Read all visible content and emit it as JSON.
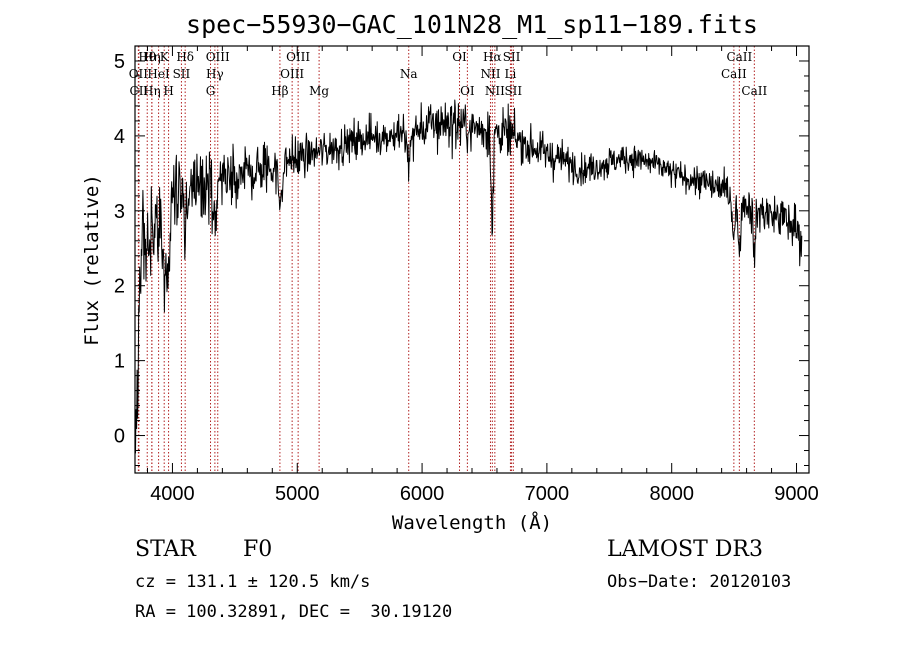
{
  "chart_data": {
    "type": "line",
    "title": "spec−55930−GAC_101N28_M1_sp11−189.fits",
    "xlabel": "Wavelength (Å)",
    "ylabel": "Flux (relative)",
    "xlim": [
      3700,
      9100
    ],
    "ylim": [
      -0.5,
      5.2
    ],
    "xticks": [
      4000,
      5000,
      6000,
      7000,
      8000,
      9000
    ],
    "yticks": [
      0,
      1,
      2,
      3,
      4,
      5
    ],
    "xtick_labels": [
      "4000",
      "5000",
      "6000",
      "7000",
      "8000",
      "9000"
    ],
    "ytick_labels": [
      "0",
      "1",
      "2",
      "3",
      "4",
      "5"
    ],
    "continuum": [
      [
        3700,
        0.0
      ],
      [
        3715,
        0.5
      ],
      [
        3730,
        1.6
      ],
      [
        3760,
        2.7
      ],
      [
        3800,
        2.5
      ],
      [
        3850,
        2.8
      ],
      [
        3900,
        3.0
      ],
      [
        3950,
        3.2
      ],
      [
        4000,
        3.3
      ],
      [
        4100,
        3.3
      ],
      [
        4200,
        3.35
      ],
      [
        4300,
        3.4
      ],
      [
        4400,
        3.45
      ],
      [
        4500,
        3.5
      ],
      [
        4600,
        3.5
      ],
      [
        4700,
        3.55
      ],
      [
        4800,
        3.6
      ],
      [
        4900,
        3.65
      ],
      [
        5000,
        3.7
      ],
      [
        5100,
        3.75
      ],
      [
        5200,
        3.8
      ],
      [
        5300,
        3.85
      ],
      [
        5400,
        3.9
      ],
      [
        5500,
        3.95
      ],
      [
        5600,
        4.0
      ],
      [
        5700,
        4.0
      ],
      [
        5800,
        4.02
      ],
      [
        5900,
        4.0
      ],
      [
        6000,
        4.1
      ],
      [
        6100,
        4.15
      ],
      [
        6200,
        4.2
      ],
      [
        6300,
        4.15
      ],
      [
        6400,
        4.1
      ],
      [
        6500,
        4.1
      ],
      [
        6600,
        4.08
      ],
      [
        6700,
        4.0
      ],
      [
        6800,
        3.9
      ],
      [
        6900,
        3.85
      ],
      [
        7000,
        3.75
      ],
      [
        7100,
        3.7
      ],
      [
        7200,
        3.62
      ],
      [
        7300,
        3.55
      ],
      [
        7400,
        3.6
      ],
      [
        7500,
        3.65
      ],
      [
        7600,
        3.7
      ],
      [
        7700,
        3.7
      ],
      [
        7800,
        3.65
      ],
      [
        7900,
        3.6
      ],
      [
        8000,
        3.5
      ],
      [
        8100,
        3.45
      ],
      [
        8200,
        3.4
      ],
      [
        8300,
        3.35
      ],
      [
        8400,
        3.3
      ],
      [
        8500,
        3.2
      ],
      [
        8600,
        3.1
      ],
      [
        8700,
        3.0
      ],
      [
        8800,
        2.95
      ],
      [
        8900,
        2.9
      ],
      [
        9000,
        2.75
      ],
      [
        9050,
        2.6
      ]
    ],
    "noise": [
      [
        3700,
        0.6
      ],
      [
        4000,
        0.45
      ],
      [
        4400,
        0.35
      ],
      [
        5000,
        0.25
      ],
      [
        5600,
        0.2
      ],
      [
        6000,
        0.28
      ],
      [
        6500,
        0.3
      ],
      [
        7000,
        0.2
      ],
      [
        8000,
        0.15
      ],
      [
        8500,
        0.2
      ],
      [
        9050,
        0.3
      ]
    ],
    "absorption_features": [
      {
        "wavelength": 3934,
        "depth": 1.2,
        "width": 12
      },
      {
        "wavelength": 3969,
        "depth": 1.0,
        "width": 12
      },
      {
        "wavelength": 4102,
        "depth": 0.6,
        "width": 15
      },
      {
        "wavelength": 4340,
        "depth": 0.8,
        "width": 15
      },
      {
        "wavelength": 4861,
        "depth": 0.5,
        "width": 15
      },
      {
        "wavelength": 5890,
        "depth": 0.35,
        "width": 12
      },
      {
        "wavelength": 6563,
        "depth": 1.4,
        "width": 8
      },
      {
        "wavelength": 8498,
        "depth": 0.6,
        "width": 10
      },
      {
        "wavelength": 8542,
        "depth": 0.7,
        "width": 10
      },
      {
        "wavelength": 8662,
        "depth": 0.6,
        "width": 10
      }
    ],
    "spectral_lines": [
      {
        "label": "Hθ",
        "wavelength": 3798,
        "row": 1
      },
      {
        "label": "OII",
        "wavelength": 3727,
        "row": 2
      },
      {
        "label": "CII",
        "wavelength": 3731,
        "row": 3
      },
      {
        "label": "Hη",
        "wavelength": 3835,
        "row": 1
      },
      {
        "label": "HeI",
        "wavelength": 3889,
        "row": 2
      },
      {
        "label": "Hη",
        "wavelength": 3835,
        "row": 3
      },
      {
        "label": "K",
        "wavelength": 3934,
        "row": 1
      },
      {
        "label": "H",
        "wavelength": 3969,
        "row": 3
      },
      {
        "label": "SII",
        "wavelength": 4072,
        "row": 2
      },
      {
        "label": "Hδ",
        "wavelength": 4102,
        "row": 1
      },
      {
        "label": "OIII",
        "wavelength": 4363,
        "row": 1
      },
      {
        "label": "Hγ",
        "wavelength": 4340,
        "row": 2
      },
      {
        "label": "G",
        "wavelength": 4305,
        "row": 3
      },
      {
        "label": "Hβ",
        "wavelength": 4861,
        "row": 3
      },
      {
        "label": "OIII",
        "wavelength": 5007,
        "row": 1
      },
      {
        "label": "OIII",
        "wavelength": 4959,
        "row": 2
      },
      {
        "label": "Mg",
        "wavelength": 5175,
        "row": 3
      },
      {
        "label": "Na",
        "wavelength": 5893,
        "row": 2
      },
      {
        "label": "OI",
        "wavelength": 6300,
        "row": 1
      },
      {
        "label": "OI",
        "wavelength": 6363,
        "row": 3
      },
      {
        "label": "Hα",
        "wavelength": 6563,
        "row": 1
      },
      {
        "label": "NII",
        "wavelength": 6548,
        "row": 2
      },
      {
        "label": "NII",
        "wavelength": 6583,
        "row": 3
      },
      {
        "label": "SII",
        "wavelength": 6717,
        "row": 1
      },
      {
        "label": "Li",
        "wavelength": 6708,
        "row": 2
      },
      {
        "label": "SII",
        "wavelength": 6731,
        "row": 3
      },
      {
        "label": "CaII",
        "wavelength": 8542,
        "row": 1
      },
      {
        "label": "CaII",
        "wavelength": 8498,
        "row": 2
      },
      {
        "label": "CaII",
        "wavelength": 8662,
        "row": 3
      }
    ],
    "line_color": "#000000",
    "marker_color": "#b22222"
  },
  "info": {
    "class_label": "STAR",
    "subclass": "F0",
    "survey": "LAMOST DR3",
    "redshift": "cz = 131.1 ± 120.5 km/s",
    "obs_date": "Obs−Date: 20120103",
    "coordinates": "RA = 100.32891, DEC =  30.19120"
  }
}
